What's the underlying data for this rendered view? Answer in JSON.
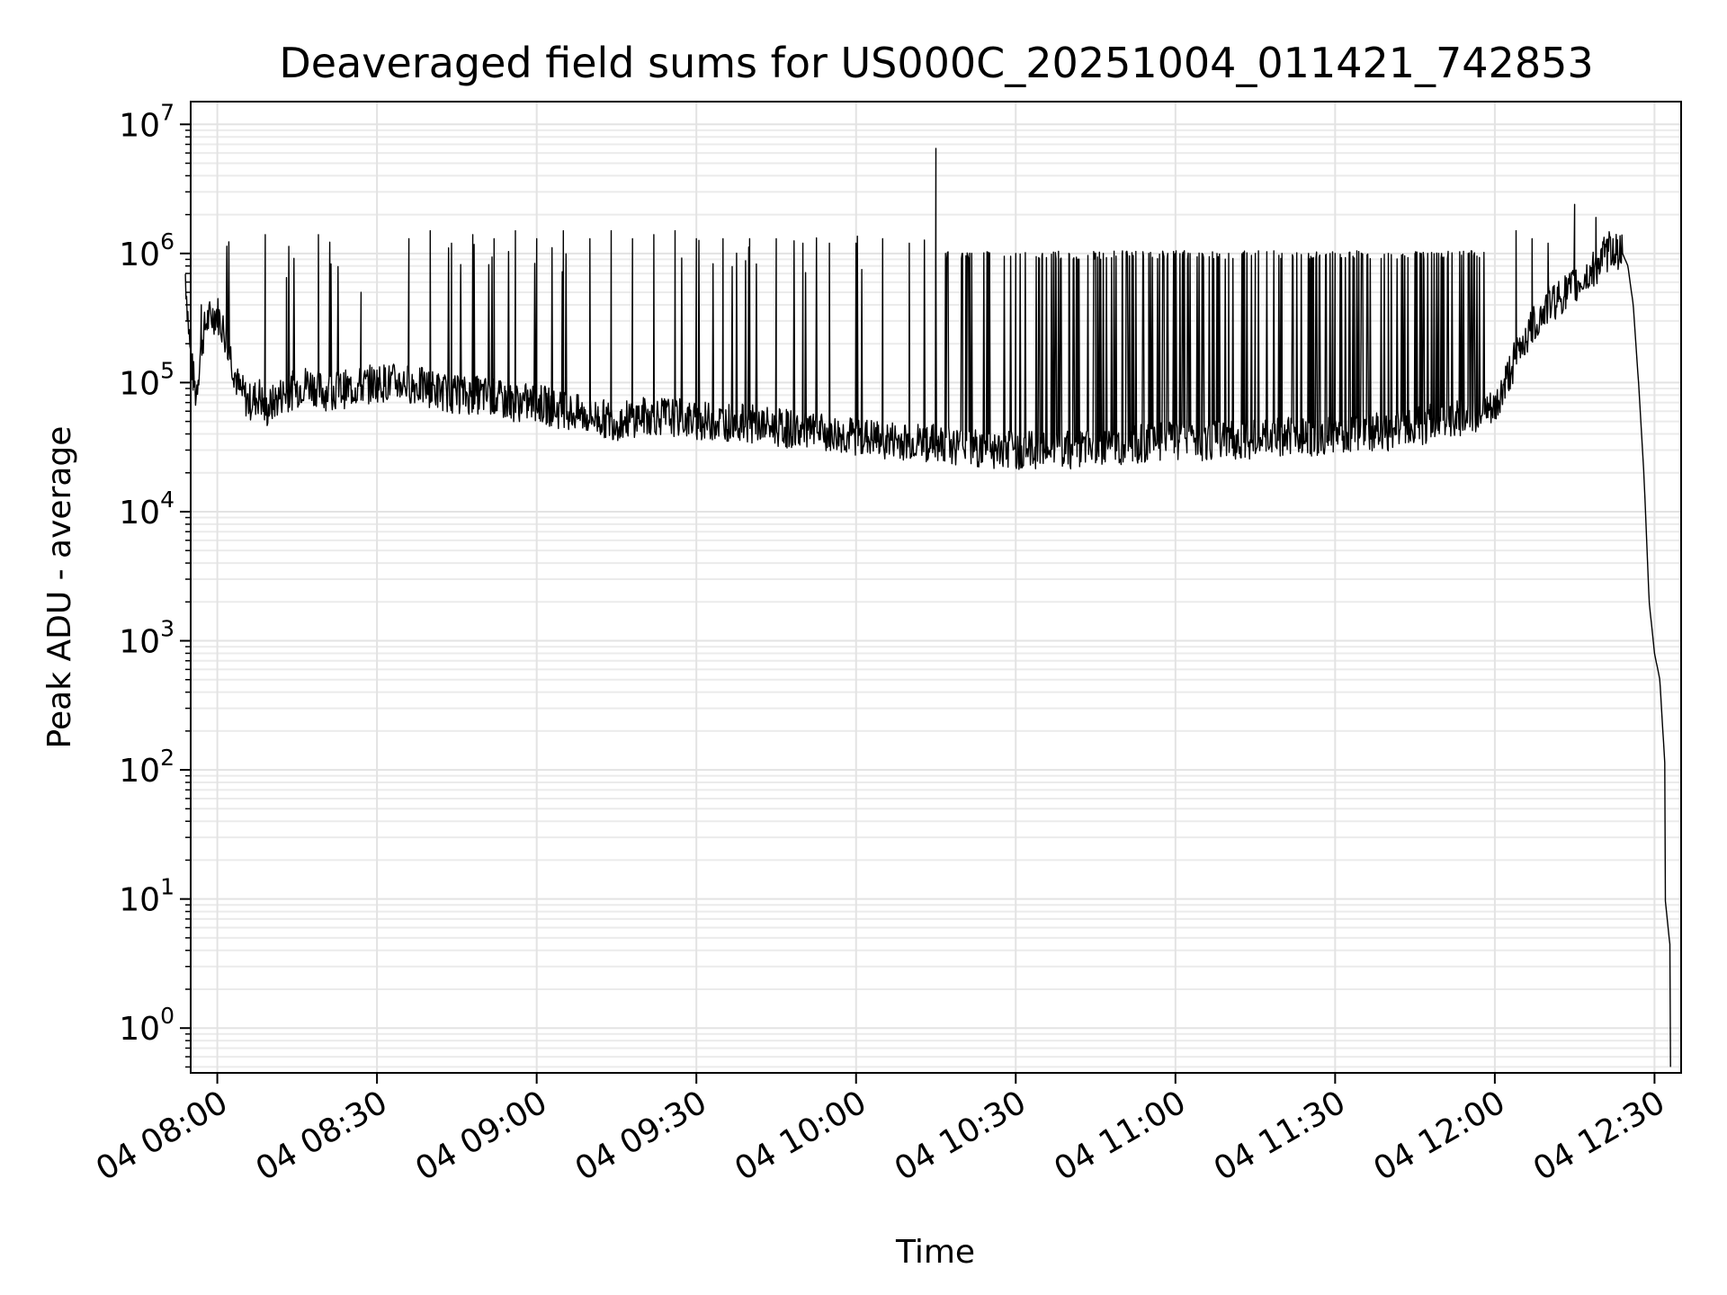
{
  "chart_data": {
    "type": "line",
    "title": "Deaveraged field sums for US000C_20251004_011421_742853",
    "xlabel": "Time",
    "ylabel": "Peak ADU - average",
    "yscale": "log",
    "ylim": [
      0.45,
      15000000
    ],
    "xlim": [
      "04 07:55",
      "04 12:35"
    ],
    "grid": true,
    "grid_minor": true,
    "x_ticks": [
      {
        "t": "04 08:00",
        "label": "04 08:00"
      },
      {
        "t": "04 08:30",
        "label": "04 08:30"
      },
      {
        "t": "04 09:00",
        "label": "04 09:00"
      },
      {
        "t": "04 09:30",
        "label": "04 09:30"
      },
      {
        "t": "04 10:00",
        "label": "04 10:00"
      },
      {
        "t": "04 10:30",
        "label": "04 10:30"
      },
      {
        "t": "04 11:00",
        "label": "04 11:00"
      },
      {
        "t": "04 11:30",
        "label": "04 11:30"
      },
      {
        "t": "04 12:00",
        "label": "04 12:00"
      },
      {
        "t": "04 12:30",
        "label": "04 12:30"
      }
    ],
    "y_ticks": [
      {
        "value": 1,
        "base": "10",
        "exp": "0"
      },
      {
        "value": 10,
        "base": "10",
        "exp": "1"
      },
      {
        "value": 100,
        "base": "10",
        "exp": "2"
      },
      {
        "value": 1000,
        "base": "10",
        "exp": "3"
      },
      {
        "value": 10000,
        "base": "10",
        "exp": "4"
      },
      {
        "value": 100000,
        "base": "10",
        "exp": "5"
      },
      {
        "value": 1000000,
        "base": "10",
        "exp": "6"
      },
      {
        "value": 10000000,
        "base": "10",
        "exp": "7"
      }
    ],
    "series": [
      {
        "color": "#000000",
        "x": [
          "04 07:54",
          "04 07:55",
          "04 07:56",
          "04 07:57",
          "04 07:58",
          "04 08:00",
          "04 08:02",
          "04 08:04",
          "04 08:06",
          "04 08:08",
          "04 08:09",
          "04 08:12",
          "04 08:15",
          "04 08:17",
          "04 08:20",
          "04 08:25",
          "04 08:30",
          "04 08:35",
          "04 08:40",
          "04 08:45",
          "04 08:50",
          "04 08:55",
          "04 09:00",
          "04 09:05",
          "04 09:10",
          "04 09:15",
          "04 09:20",
          "04 09:25",
          "04 09:30",
          "04 09:35",
          "04 09:40",
          "04 09:45",
          "04 09:50",
          "04 09:55",
          "04 10:00",
          "04 10:05",
          "04 10:10",
          "04 10:15",
          "04 10:20",
          "04 10:25",
          "04 10:30",
          "04 10:35",
          "04 10:40",
          "04 10:45",
          "04 10:50",
          "04 10:55",
          "04 11:00",
          "04 11:05",
          "04 11:10",
          "04 11:15",
          "04 11:20",
          "04 11:25",
          "04 11:30",
          "04 11:35",
          "04 11:40",
          "04 11:45",
          "04 11:50",
          "04 11:55",
          "04 12:00",
          "04 12:02",
          "04 12:05",
          "04 12:10",
          "04 12:15",
          "04 12:18",
          "04 12:20",
          "04 12:22",
          "04 12:24",
          "04 12:25",
          "04 12:26",
          "04 12:27",
          "04 12:28",
          "04 12:29",
          "04 12:30",
          "04 12:31",
          "04 12:32",
          "04 12:32",
          "04 12:33",
          "04 12:33"
        ],
        "y": [
          700000,
          150000,
          80000,
          200000,
          300000,
          350000,
          200000,
          90000,
          70000,
          80000,
          60000,
          80000,
          90000,
          100000,
          85000,
          90000,
          100000,
          100000,
          90000,
          80000,
          80000,
          70000,
          70000,
          60000,
          55000,
          50000,
          55000,
          55000,
          50000,
          50000,
          48000,
          45000,
          42000,
          40000,
          38000,
          36000,
          35000,
          34000,
          32000,
          30000,
          30000,
          30000,
          30000,
          30000,
          32000,
          34000,
          35000,
          35000,
          36000,
          36000,
          38000,
          38000,
          40000,
          40000,
          42000,
          45000,
          50000,
          55000,
          60000,
          100000,
          200000,
          400000,
          550000,
          700000,
          900000,
          1100000,
          1000000,
          800000,
          400000,
          100000,
          20000,
          2000,
          800,
          500,
          100,
          10,
          4,
          0.5
        ],
        "spikes": [
          {
            "x": "04 07:55",
            "y": 700000
          },
          {
            "x": "04 07:57",
            "y": 400000
          },
          {
            "x": "04 08:09",
            "y": 1400000
          },
          {
            "x": "04 08:13",
            "y": 650000
          },
          {
            "x": "04 08:19",
            "y": 1400000
          },
          {
            "x": "04 08:27",
            "y": 500000
          },
          {
            "x": "04 08:36",
            "y": 1300000
          },
          {
            "x": "04 08:40",
            "y": 1500000
          },
          {
            "x": "04 08:44",
            "y": 1200000
          },
          {
            "x": "04 08:48",
            "y": 1400000
          },
          {
            "x": "04 08:52",
            "y": 1300000
          },
          {
            "x": "04 08:56",
            "y": 1500000
          },
          {
            "x": "04 09:00",
            "y": 1300000
          },
          {
            "x": "04 09:05",
            "y": 1500000
          },
          {
            "x": "04 09:10",
            "y": 1300000
          },
          {
            "x": "04 09:14",
            "y": 1500000
          },
          {
            "x": "04 09:18",
            "y": 1300000
          },
          {
            "x": "04 09:22",
            "y": 1400000
          },
          {
            "x": "04 09:26",
            "y": 1500000
          },
          {
            "x": "04 09:30",
            "y": 1300000
          },
          {
            "x": "04 09:35",
            "y": 1300000
          },
          {
            "x": "04 09:40",
            "y": 1300000
          },
          {
            "x": "04 09:45",
            "y": 1300000
          },
          {
            "x": "04 09:50",
            "y": 1200000
          },
          {
            "x": "04 09:55",
            "y": 1200000
          },
          {
            "x": "04 10:00",
            "y": 1200000
          },
          {
            "x": "04 10:05",
            "y": 1300000
          },
          {
            "x": "04 10:10",
            "y": 1200000
          },
          {
            "x": "04 10:15",
            "y": 6500000
          },
          {
            "x": "04 10:20",
            "y": 1000000
          },
          {
            "x": "04 10:25",
            "y": 1000000
          },
          {
            "x": "04 10:30",
            "y": 1000000
          },
          {
            "x": "04 10:35",
            "y": 1000000
          },
          {
            "x": "04 10:40",
            "y": 1000000
          },
          {
            "x": "04 10:45",
            "y": 1000000
          },
          {
            "x": "04 10:50",
            "y": 1000000
          },
          {
            "x": "04 10:55",
            "y": 1000000
          },
          {
            "x": "04 11:00",
            "y": 1000000
          },
          {
            "x": "04 11:05",
            "y": 1000000
          },
          {
            "x": "04 11:10",
            "y": 1000000
          },
          {
            "x": "04 11:15",
            "y": 1000000
          },
          {
            "x": "04 11:20",
            "y": 1000000
          },
          {
            "x": "04 11:25",
            "y": 1000000
          },
          {
            "x": "04 11:30",
            "y": 1000000
          },
          {
            "x": "04 11:35",
            "y": 1000000
          },
          {
            "x": "04 11:40",
            "y": 1000000
          },
          {
            "x": "04 11:45",
            "y": 1000000
          },
          {
            "x": "04 11:50",
            "y": 1000000
          },
          {
            "x": "04 11:55",
            "y": 1000000
          },
          {
            "x": "04 12:04",
            "y": 1500000
          },
          {
            "x": "04 12:07",
            "y": 1300000
          },
          {
            "x": "04 12:10",
            "y": 1200000
          },
          {
            "x": "04 12:15",
            "y": 2400000
          },
          {
            "x": "04 12:19",
            "y": 1900000
          }
        ]
      }
    ]
  }
}
